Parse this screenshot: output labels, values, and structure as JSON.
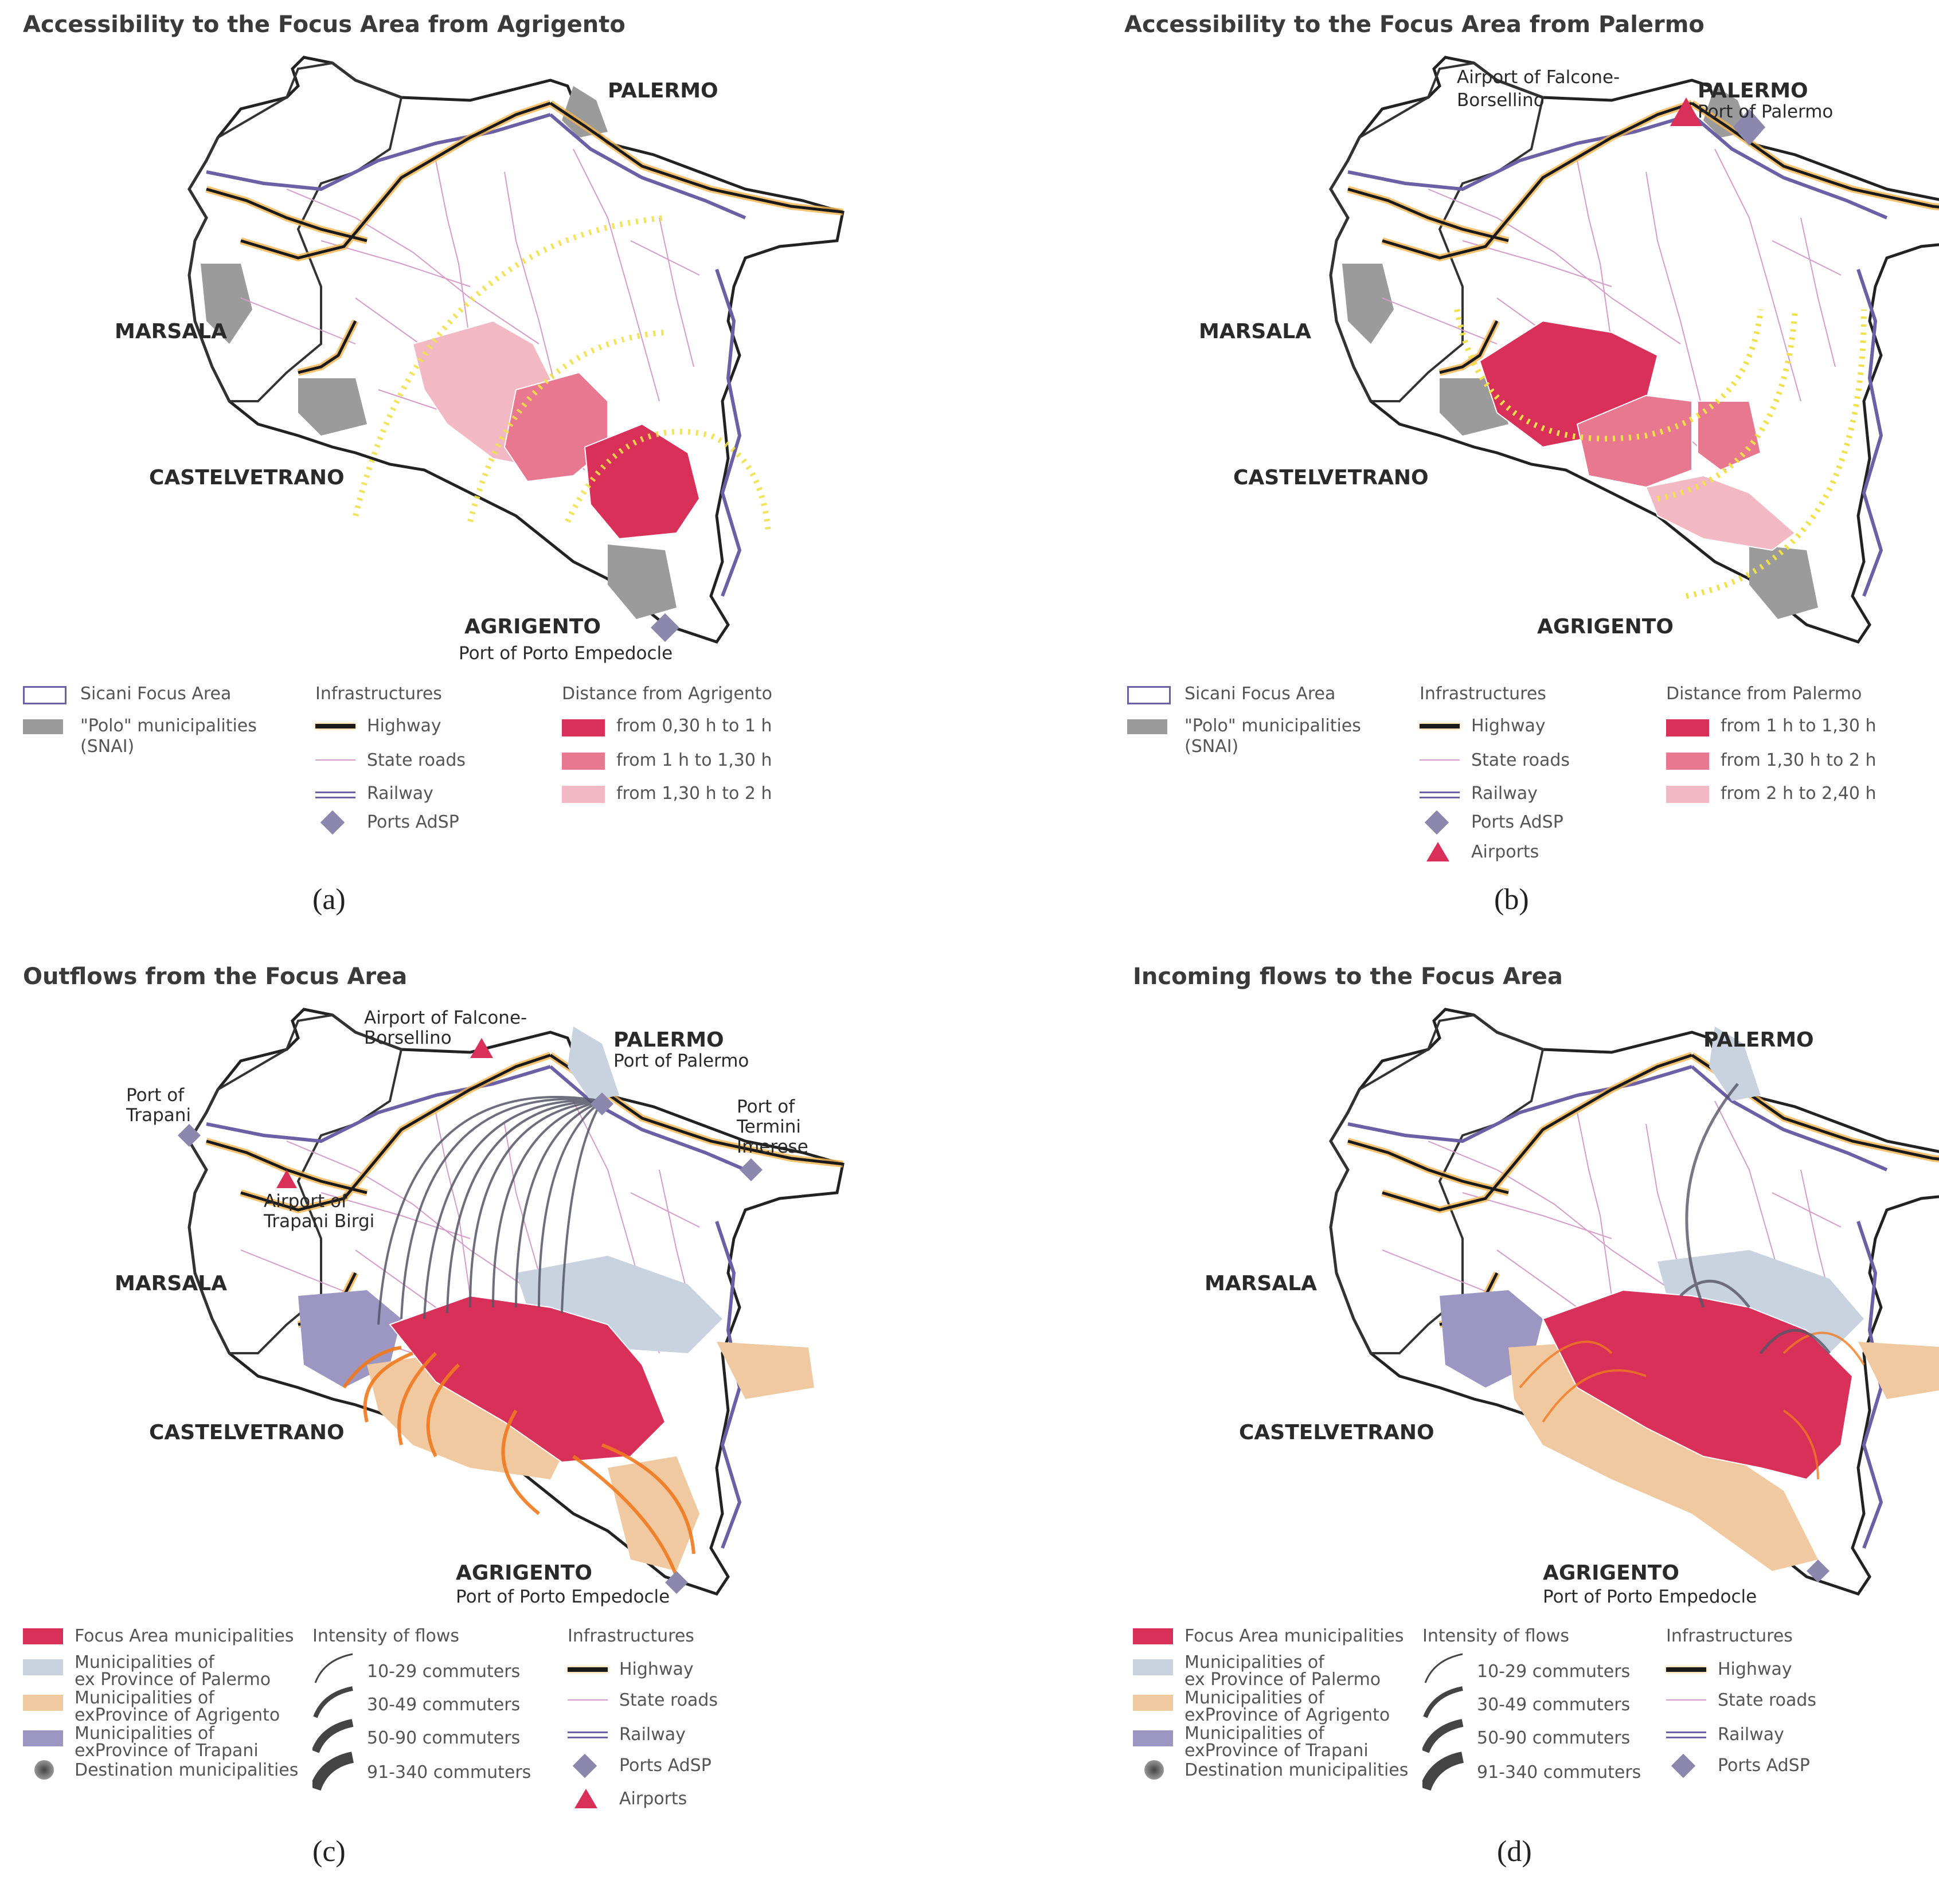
{
  "panels": {
    "a": {
      "title": "Accessibility to the Focus Area from Agrigento",
      "label": "(a)",
      "cities": {
        "palermo": "PALERMO",
        "marsala": "MARSALA",
        "castelvetrano": "CASTELVETRANO",
        "agrigento": "AGRIGENTO",
        "port": "Port of Porto Empedocle"
      },
      "legend": {
        "focus": "Sicani Focus Area",
        "polo": "\"Polo\" municipalities",
        "polo2": "(SNAI)",
        "infra_title": "Infrastructures",
        "highway": "Highway",
        "state": "State roads",
        "railway": "Railway",
        "ports": "Ports AdSP",
        "dist_title": "Distance from Agrigento",
        "d1": "from 0,30 h to 1 h",
        "d2": "from 1 h to 1,30 h",
        "d3": "from 1,30 h to 2 h"
      }
    },
    "b": {
      "title": "Accessibility to the Focus Area from Palermo",
      "label": "(b)",
      "cities": {
        "palermo": "PALERMO",
        "palermo_port": "Port of Palermo",
        "airport1": "Airport of Falcone-",
        "airport2": "Borsellino",
        "marsala": "MARSALA",
        "castelvetrano": "CASTELVETRANO",
        "agrigento": "AGRIGENTO"
      },
      "legend": {
        "focus": "Sicani Focus Area",
        "polo": "\"Polo\" municipalities",
        "polo2": "(SNAI)",
        "infra_title": "Infrastructures",
        "highway": "Highway",
        "state": "State roads",
        "railway": "Railway",
        "ports": "Ports AdSP",
        "airports": "Airports",
        "dist_title": "Distance from Palermo",
        "d1": "from 1 h to 1,30 h",
        "d2": "from 1,30 h to 2 h",
        "d3": "from 2 h to 2,40 h"
      }
    },
    "c": {
      "title": "Outflows from the Focus Area",
      "label": "(c)",
      "cities": {
        "palermo": "PALERMO",
        "palermo_port": "Port of Palermo",
        "airport1": "Airport of Falcone-",
        "airport2": "Borsellino",
        "trapani1": "Port of",
        "trapani2": "Trapani",
        "termini1": "Port of",
        "termini2": "Termini",
        "termini3": "Imerese",
        "birgi1": "Airport of",
        "birgi2": "Trapani Birgi",
        "marsala": "MARSALA",
        "castelvetrano": "CASTELVETRANO",
        "agrigento": "AGRIGENTO",
        "port": "Port of Porto Empedocle"
      },
      "legend": {
        "focus": "Focus Area municipalities",
        "pa1": "Municipalities of",
        "pa2": "ex Province of Palermo",
        "ag1": "Municipalities of",
        "ag2": "exProvince of Agrigento",
        "tp1": "Municipalities of",
        "tp2": "exProvince of Trapani",
        "dest": "Destination municipalities",
        "int_title": "Intensity of flows",
        "f1": "10-29 commuters",
        "f2": "30-49 commuters",
        "f3": "50-90 commuters",
        "f4": "91-340 commuters",
        "infra_title": "Infrastructures",
        "highway": "Highway",
        "state": "State roads",
        "railway": "Railway",
        "ports": "Ports AdSP",
        "airports": "Airports"
      }
    },
    "d": {
      "title": "Incoming flows to the Focus Area",
      "label": "(d)",
      "cities": {
        "palermo": "PALERMO",
        "marsala": "MARSALA",
        "castelvetrano": "CASTELVETRANO",
        "agrigento": "AGRIGENTO",
        "port": "Port of Porto Empedocle"
      },
      "legend": {
        "focus": "Focus Area municipalities",
        "pa1": "Municipalities of",
        "pa2": "ex Province of Palermo",
        "ag1": "Municipalities of",
        "ag2": "exProvince of Agrigento",
        "tp1": "Municipalities of",
        "tp2": "exProvince of Trapani",
        "dest": "Destination municipalities",
        "int_title": "Intensity of flows",
        "f1": "10-29 commuters",
        "f2": "30-49 commuters",
        "f3": "50-90 commuters",
        "f4": "91-340 commuters",
        "infra_title": "Infrastructures",
        "highway": "Highway",
        "state": "State roads",
        "railway": "Railway",
        "ports": "Ports AdSP"
      }
    }
  },
  "colors": {
    "focus_dark": "#d9305a",
    "focus_mid": "#e8788f",
    "focus_light": "#f2b8c4",
    "polo": "#9b9b9b",
    "palermo_prov": "#c9d3e0",
    "agrigento_prov": "#f1c9a0",
    "trapani_prov": "#9c97c2",
    "outflow": "#f07a20",
    "flow_grey": "#555566"
  }
}
